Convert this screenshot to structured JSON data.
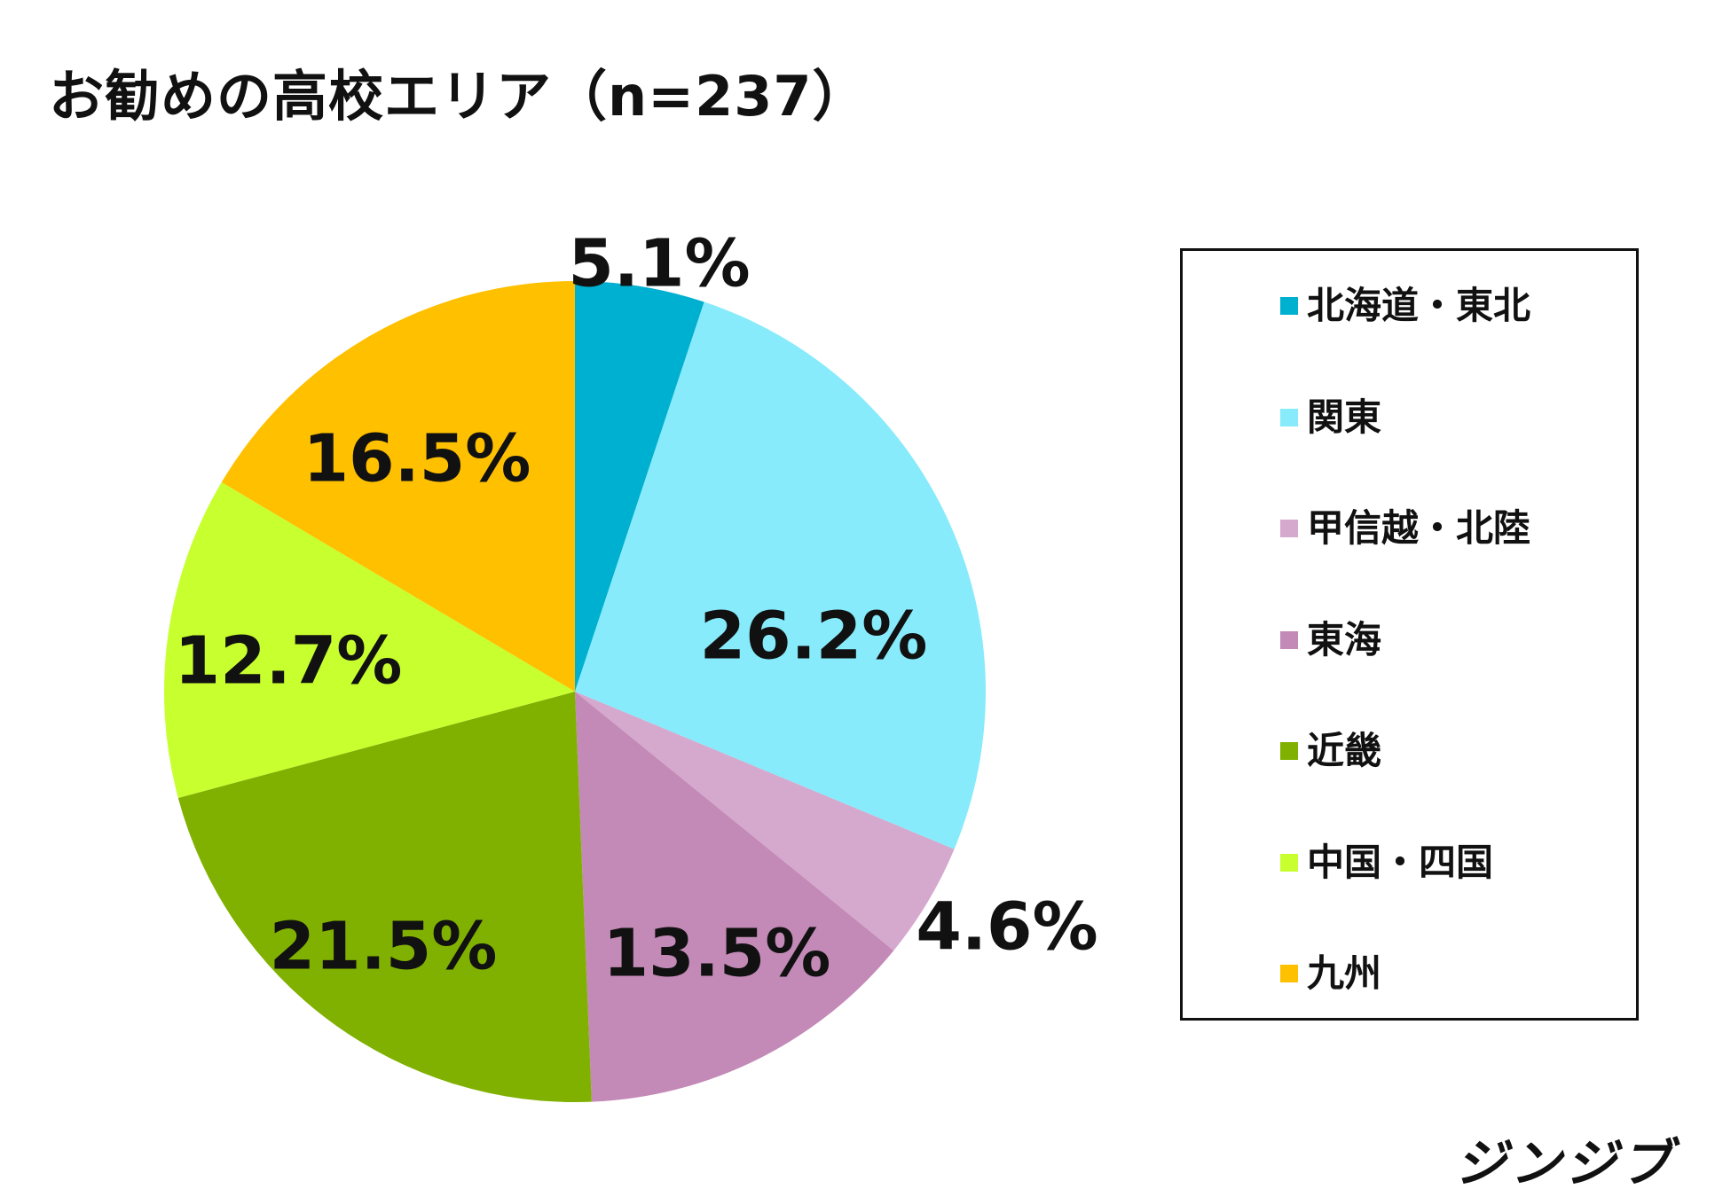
{
  "chart_data": {
    "type": "pie",
    "title": "お勧めの高校エリア（n=237）",
    "start_angle_deg": 0,
    "direction": "clockwise",
    "legend_position": "right",
    "slices": [
      {
        "label": "北海道・東北",
        "value": 5.1,
        "value_label": "5.1%",
        "color": "#00B0D0"
      },
      {
        "label": "関東",
        "value": 26.2,
        "value_label": "26.2%",
        "color": "#87EBFB"
      },
      {
        "label": "甲信越・北陸",
        "value": 4.6,
        "value_label": "4.6%",
        "color": "#D5A8CE"
      },
      {
        "label": "東海",
        "value": 13.5,
        "value_label": "13.5%",
        "color": "#C389B7"
      },
      {
        "label": "近畿",
        "value": 21.5,
        "value_label": "21.5%",
        "color": "#80B000"
      },
      {
        "label": "中国・四国",
        "value": 12.7,
        "value_label": "12.7%",
        "color": "#C8FF2E"
      },
      {
        "label": "九州",
        "value": 16.5,
        "value_label": "16.5%",
        "color": "#FFC000"
      }
    ]
  },
  "brand": {
    "logo_text": "ジンジブ"
  }
}
